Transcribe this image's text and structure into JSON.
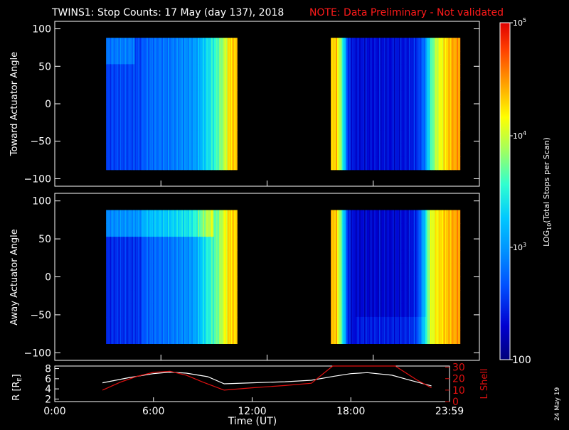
{
  "title": {
    "main": "TWINS1: Stop Counts: 17 May (day 137), 2018",
    "note": "NOTE: Data Preliminary - Not validated"
  },
  "panels": {
    "toward_ylabel": "Toward Actuator Angle",
    "away_ylabel": "Away Actuator Angle",
    "y_ticks": [
      "100",
      "50",
      "0",
      "−50",
      "−100"
    ]
  },
  "colorbar": {
    "label": "LOG10(Total Stops per Scan)",
    "label_prefix": "LOG",
    "label_sub": "10",
    "label_suffix": "(Total Stops per Scan)",
    "tick_top": "10",
    "tick_top_exp": "5",
    "tick_4": "10",
    "tick_4_exp": "4",
    "tick_3": "10",
    "tick_3_exp": "3",
    "tick_bottom": "100"
  },
  "orbit": {
    "r_label": "R [R",
    "r_label_sub": "E",
    "r_label_end": "]",
    "l_label": "L Shell",
    "r_ticks": [
      "8",
      "6",
      "4",
      "2"
    ],
    "l_ticks": [
      "30",
      "20",
      "10",
      "0"
    ]
  },
  "x_axis": {
    "label": "Time (UT)",
    "ticks": [
      "0:00",
      "6:00",
      "12:00",
      "18:00",
      "23:59"
    ]
  },
  "stamp": "24 May 19",
  "colors": {
    "note": "#ff1a1a",
    "r_line": "#ffffff",
    "l_line": "#e01010",
    "background": "#000000"
  },
  "chart_data": [
    {
      "type": "heatmap",
      "title": "TWINS1: Stop Counts: 17 May (day 137), 2018",
      "ylabel": "Toward Actuator Angle",
      "xlabel": "",
      "ylim": [
        -110,
        110
      ],
      "xlim": [
        0,
        24
      ],
      "data_y_range": [
        -88,
        88
      ],
      "time_blocks": [
        [
          2.9,
          10.3
        ],
        [
          15.6,
          22.9
        ]
      ],
      "colorscale": "log",
      "zlim": [
        100,
        100000
      ],
      "profile_x": [
        2.9,
        3.5,
        4.3,
        4.9,
        5.0,
        5.5,
        6.0,
        6.6,
        7.1,
        7.6,
        8.0,
        8.3,
        8.6,
        9.0,
        9.3,
        9.6,
        9.9,
        10.3,
        15.6,
        15.9,
        16.3,
        16.6,
        17.0,
        18.0,
        19.0,
        20.0,
        20.5,
        20.9,
        21.2,
        21.6,
        22.0,
        22.4,
        22.9
      ],
      "profile_log10": [
        2.55,
        2.6,
        2.62,
        2.63,
        2.72,
        2.78,
        2.82,
        2.85,
        2.9,
        2.95,
        3.05,
        3.2,
        3.35,
        3.5,
        3.7,
        3.95,
        4.3,
        4.35,
        4.2,
        4.4,
        3.5,
        2.45,
        2.35,
        2.35,
        2.35,
        2.4,
        2.5,
        2.8,
        3.5,
        4.0,
        4.2,
        4.4,
        4.5
      ]
    },
    {
      "type": "heatmap",
      "ylabel": "Away Actuator Angle",
      "xlabel": "",
      "ylim": [
        -110,
        110
      ],
      "xlim": [
        0,
        24
      ],
      "data_y_range": [
        -88,
        88
      ],
      "time_blocks": [
        [
          2.9,
          10.3
        ],
        [
          15.6,
          22.9
        ]
      ],
      "colorscale": "log",
      "zlim": [
        100,
        100000
      ],
      "profile_x": [
        2.9,
        3.5,
        4.3,
        4.9,
        5.0,
        5.5,
        6.0,
        6.6,
        7.1,
        7.6,
        8.0,
        8.3,
        8.6,
        9.0,
        9.3,
        9.6,
        9.9,
        10.3,
        15.6,
        15.9,
        16.3,
        16.6,
        17.0,
        18.0,
        19.0,
        20.0,
        20.5,
        20.9,
        21.2,
        21.6,
        22.0,
        22.4,
        22.9
      ],
      "profile_log10": [
        2.45,
        2.5,
        2.52,
        2.55,
        2.7,
        2.75,
        2.8,
        2.85,
        2.9,
        2.95,
        3.1,
        3.3,
        3.45,
        3.6,
        3.8,
        4.1,
        4.3,
        4.3,
        4.3,
        4.4,
        3.4,
        2.4,
        2.3,
        2.3,
        2.3,
        2.35,
        2.5,
        3.2,
        4.0,
        4.2,
        4.3,
        4.4,
        4.5
      ]
    },
    {
      "type": "line",
      "xlabel": "Time (UT)",
      "xlim": [
        0,
        24
      ],
      "series": [
        {
          "name": "R [RE]",
          "axis": "left",
          "ylim": [
            1.5,
            8.5
          ],
          "x": [
            2.9,
            4.5,
            6.0,
            7.0,
            8.0,
            9.3,
            10.3,
            12.0,
            14.0,
            15.6,
            17.0,
            18.0,
            19.0,
            20.5,
            21.5,
            22.9
          ],
          "y": [
            5.2,
            6.2,
            7.0,
            7.3,
            7.1,
            6.4,
            5.0,
            5.2,
            5.4,
            5.7,
            6.5,
            7.0,
            7.2,
            6.7,
            5.8,
            4.6
          ]
        },
        {
          "name": "L Shell",
          "axis": "right",
          "ylim": [
            0,
            31
          ],
          "x": [
            2.9,
            4.0,
            5.0,
            6.0,
            7.0,
            8.0,
            9.0,
            10.3,
            12.0,
            14.0,
            15.6,
            16.9,
            20.7,
            22.0,
            22.9
          ],
          "y": [
            10,
            17,
            22,
            25.5,
            26.5,
            23,
            17,
            10,
            12,
            14,
            16,
            32,
            32,
            19,
            12
          ]
        }
      ]
    }
  ]
}
